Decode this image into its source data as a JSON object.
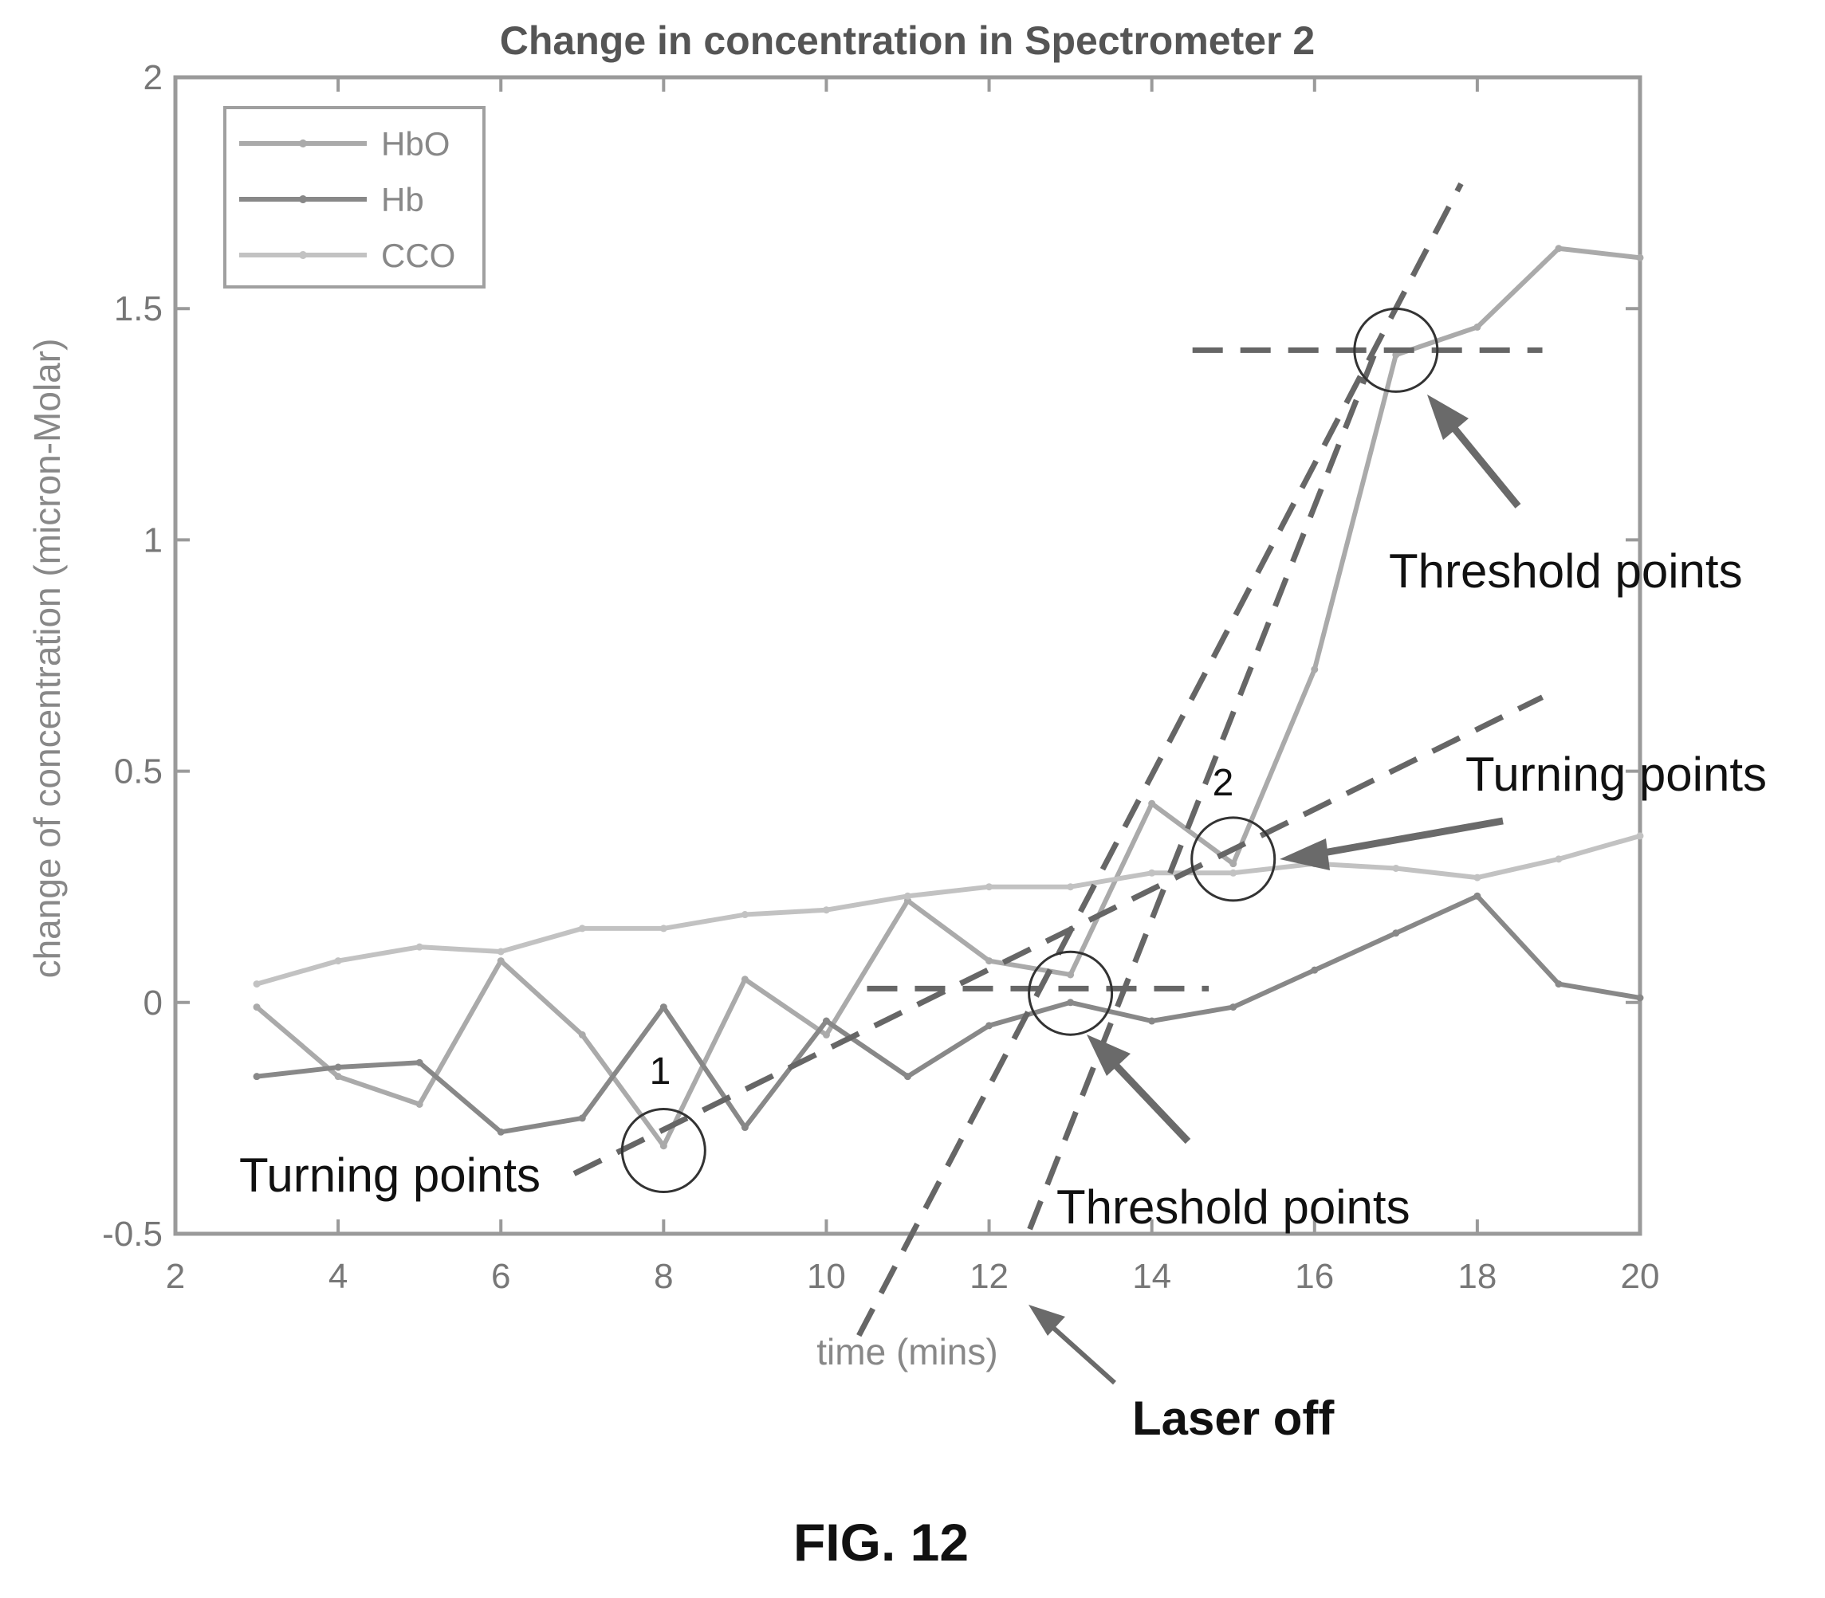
{
  "chart_data": {
    "type": "line",
    "title": "Change in concentration in Spectrometer 2",
    "xlabel": "time (mins)",
    "ylabel": "change of concentration (micron-Molar)",
    "xlim": [
      2,
      20
    ],
    "ylim": [
      -0.5,
      2
    ],
    "xticks": [
      "2",
      "4",
      "6",
      "8",
      "10",
      "12",
      "14",
      "16",
      "18",
      "20"
    ],
    "yticks": [
      "-0.5",
      "0",
      "0.5",
      "1",
      "1.5",
      "2"
    ],
    "legend_position": "top-left",
    "grid": false,
    "x": [
      3,
      4,
      5,
      6,
      7,
      8,
      9,
      10,
      11,
      12,
      13,
      14,
      15,
      16,
      17,
      18,
      19,
      20
    ],
    "series": [
      {
        "name": "HbO",
        "color": "#aaaaaa",
        "values": [
          -0.01,
          -0.16,
          -0.22,
          0.09,
          -0.07,
          -0.31,
          0.05,
          -0.07,
          0.22,
          0.09,
          0.06,
          0.43,
          0.3,
          0.72,
          1.4,
          1.46,
          1.63,
          1.61
        ]
      },
      {
        "name": "Hb",
        "color": "#888888",
        "values": [
          -0.16,
          -0.14,
          -0.13,
          -0.28,
          -0.25,
          -0.01,
          -0.27,
          -0.04,
          -0.16,
          -0.05,
          0.0,
          -0.04,
          -0.01,
          0.07,
          0.15,
          0.23,
          0.04,
          0.01
        ]
      },
      {
        "name": "CCO",
        "color": "#c2c2c2",
        "values": [
          0.04,
          0.09,
          0.12,
          0.11,
          0.16,
          0.16,
          0.19,
          0.2,
          0.23,
          0.25,
          0.25,
          0.28,
          0.28,
          0.3,
          0.29,
          0.27,
          0.31,
          0.36
        ]
      }
    ],
    "annotations": {
      "threshold_label": "Threshold points",
      "turning_label": "Turning points",
      "laser_label": "Laser off",
      "marker_1": "1",
      "marker_2": "2",
      "turning_points": [
        {
          "marker": "1",
          "x": 8.0,
          "y": -0.32
        },
        {
          "marker": "2",
          "x": 15.0,
          "y": 0.31
        }
      ],
      "threshold_points": [
        {
          "x": 13.0,
          "y": 0.02
        },
        {
          "x": 17.0,
          "y": 1.41
        }
      ],
      "laser_off_time": 12.5,
      "threshold_levels": [
        0.03,
        1.41
      ]
    }
  },
  "figure_caption": "FIG. 12"
}
